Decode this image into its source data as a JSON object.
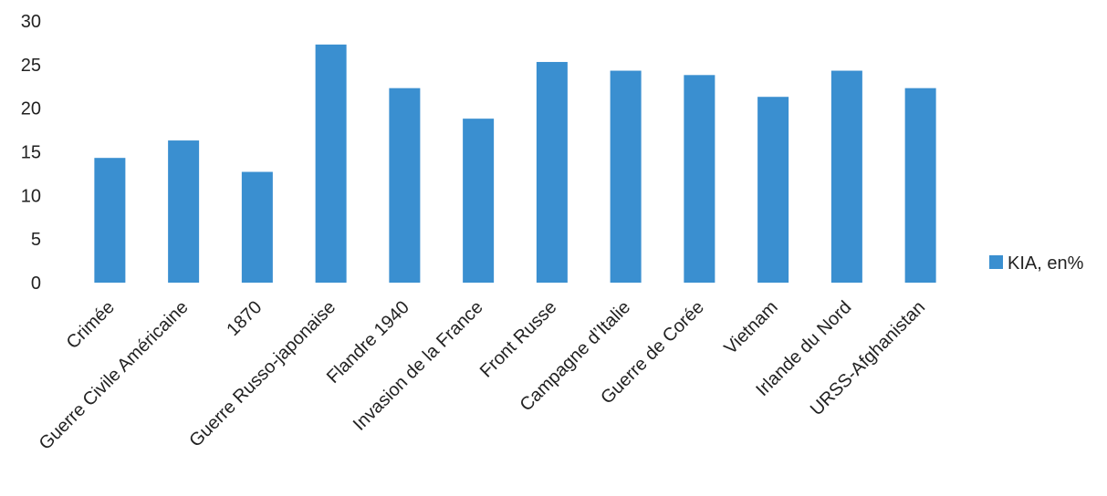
{
  "chart_data": {
    "type": "bar",
    "categories": [
      "Crimée",
      "Guerre Civile Américaine",
      "1870",
      "Guerre Russo-japonaise",
      "Flandre 1940",
      "Invasion de la France",
      "Front Russe",
      "Campagne d’Italie",
      "Guerre de Corée",
      "Vietnam",
      "Irlande du Nord",
      "URSS-Afghanistan"
    ],
    "series": [
      {
        "name": "KIA, en%",
        "values": [
          14.3,
          16.3,
          12.7,
          27.3,
          22.3,
          18.8,
          25.3,
          24.3,
          23.8,
          21.3,
          24.3,
          22.3
        ],
        "color": "#3a8fd0"
      }
    ],
    "yticks": [
      "0",
      "5",
      "10",
      "15",
      "20",
      "25",
      "30"
    ],
    "ylim": [
      0,
      30
    ],
    "legend_position": "right",
    "grid": false
  }
}
